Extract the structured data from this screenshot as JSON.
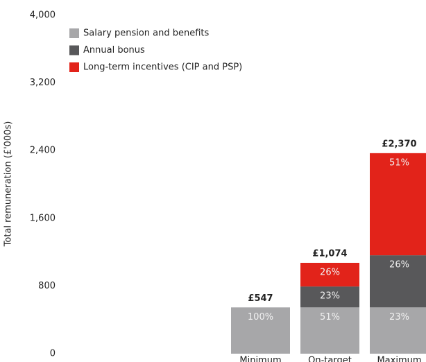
{
  "chart_data": {
    "type": "stacked-bar",
    "y_label": "Total remuneration (£'000s)",
    "categories": [
      "Minimum",
      "On-target",
      "Maximum"
    ],
    "series": [
      {
        "name": "Salary pension and benefits",
        "color": "#a7a7a9",
        "values": [
          547,
          547,
          547
        ],
        "shares": [
          100,
          51,
          23
        ],
        "share_labels": [
          "100%",
          "51%",
          "23%"
        ]
      },
      {
        "name": "Annual bonus",
        "color": "#58585a",
        "values": [
          null,
          247,
          616
        ],
        "shares": [
          null,
          23,
          26
        ],
        "share_labels": [
          null,
          "23%",
          "26%"
        ]
      },
      {
        "name": "Long-term incentives (CIP and PSP)",
        "color": "#e2231a",
        "values": [
          null,
          280,
          1207
        ],
        "shares": [
          null,
          26,
          51
        ],
        "share_labels": [
          null,
          "26%",
          "51%"
        ]
      }
    ],
    "totals": [
      547,
      1074,
      2370
    ],
    "total_labels": [
      "£547",
      "£1,074",
      "£2,370"
    ],
    "ylim": [
      0,
      4000
    ],
    "yticks": [
      0,
      {
        "value": 800,
        "label": "800"
      },
      {
        "value": 1600,
        "label": "1,600"
      },
      {
        "value": 2400,
        "label": "2,400"
      },
      {
        "value": 3200,
        "label": "3,200"
      },
      {
        "value": 4000,
        "label": "4,000"
      }
    ],
    "legend": "top-left"
  }
}
